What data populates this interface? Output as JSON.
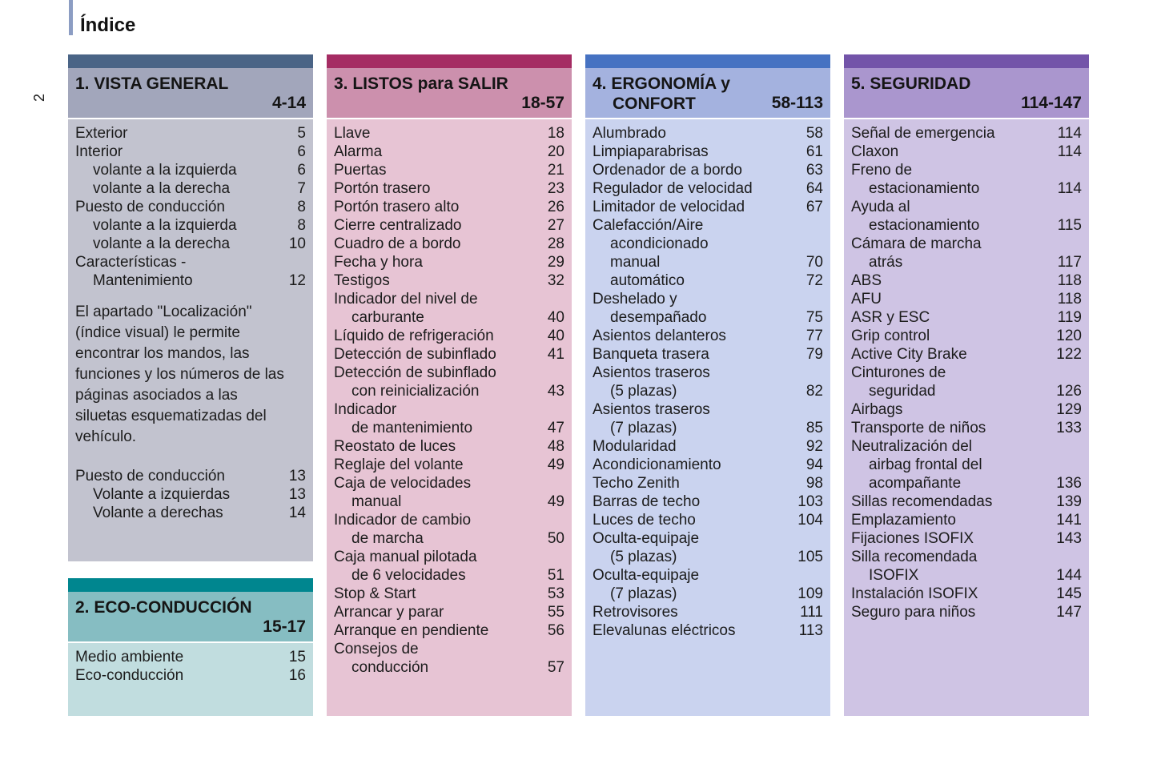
{
  "page": {
    "title": "Índice",
    "number": "2"
  },
  "sections": [
    {
      "name": "vista-general",
      "title_lines": [
        "1. VISTA GENERAL"
      ],
      "pages": "4-14",
      "colors": {
        "strip": "#4a6486",
        "header": "#a2a6bb",
        "body": "#c2c3cf"
      },
      "blocks": [
        {
          "type": "rows",
          "rows": [
            [
              "Exterior",
              0,
              "5"
            ],
            [
              "Interior",
              0,
              "6"
            ],
            [
              "volante a la izquierda",
              1,
              "6"
            ],
            [
              "volante a la derecha",
              1,
              "7"
            ],
            [
              "Puesto de conducción",
              0,
              "8"
            ],
            [
              "volante a la izquierda",
              1,
              "8"
            ],
            [
              "volante a la derecha",
              1,
              "10"
            ],
            [
              "Características -",
              0,
              ""
            ],
            [
              "Mantenimiento",
              1,
              "12"
            ]
          ]
        },
        {
          "type": "paragraph",
          "text": "El apartado \"Localización\" (índice visual) le permite encontrar los mandos, las funciones y los números de las páginas asociados a las siluetas esquematizadas del vehículo."
        },
        {
          "type": "rows",
          "rows": [
            [
              "Puesto de conducción",
              0,
              "13"
            ],
            [
              "Volante a izquierdas",
              1,
              "13"
            ],
            [
              "Volante a derechas",
              1,
              "14"
            ]
          ]
        }
      ]
    },
    {
      "name": "eco-conduccion",
      "title_lines": [
        "2. ECO-CONDUCCIÓN"
      ],
      "pages": "15-17",
      "colors": {
        "strip": "#00868f",
        "header": "#86bdc2",
        "body": "#c1dddf"
      },
      "blocks": [
        {
          "type": "rows",
          "rows": [
            [
              "Medio ambiente",
              0,
              "15"
            ],
            [
              "Eco-conducción",
              0,
              "16"
            ]
          ]
        }
      ]
    },
    {
      "name": "listos-para-salir",
      "title_lines": [
        "3. LISTOS para SALIR"
      ],
      "pages": "18-57",
      "colors": {
        "strip": "#a52c63",
        "header": "#cc90ad",
        "body": "#e7c4d4"
      },
      "blocks": [
        {
          "type": "rows",
          "rows": [
            [
              "Llave",
              0,
              "18"
            ],
            [
              "Alarma",
              0,
              "20"
            ],
            [
              "Puertas",
              0,
              "21"
            ],
            [
              "Portón trasero",
              0,
              "23"
            ],
            [
              "Portón trasero alto",
              0,
              "26"
            ],
            [
              "Cierre centralizado",
              0,
              "27"
            ],
            [
              "Cuadro de a bordo",
              0,
              "28"
            ],
            [
              "Fecha y hora",
              0,
              "29"
            ],
            [
              "Testigos",
              0,
              "32"
            ],
            [
              "Indicador del nivel de",
              0,
              ""
            ],
            [
              "carburante",
              1,
              "40"
            ],
            [
              "Líquido de refrigeración",
              0,
              "40"
            ],
            [
              "Detección de subinflado",
              0,
              "41"
            ],
            [
              "Detección de subinflado",
              0,
              ""
            ],
            [
              "con reinicialización",
              1,
              "43"
            ],
            [
              "Indicador",
              0,
              ""
            ],
            [
              "de mantenimiento",
              1,
              "47"
            ],
            [
              "Reostato de luces",
              0,
              "48"
            ],
            [
              "Reglaje del volante",
              0,
              "49"
            ],
            [
              "Caja de velocidades",
              0,
              ""
            ],
            [
              "manual",
              1,
              "49"
            ],
            [
              "Indicador de cambio",
              0,
              ""
            ],
            [
              "de marcha",
              1,
              "50"
            ],
            [
              "Caja manual pilotada",
              0,
              ""
            ],
            [
              "de 6 velocidades",
              1,
              "51"
            ],
            [
              "Stop & Start",
              0,
              "53"
            ],
            [
              "Arrancar y parar",
              0,
              "55"
            ],
            [
              "Arranque en pendiente",
              0,
              "56"
            ],
            [
              "Consejos de",
              0,
              ""
            ],
            [
              "conducción",
              1,
              "57"
            ]
          ]
        }
      ]
    },
    {
      "name": "ergonomia-confort",
      "title_lines": [
        "4. ERGONOMÍA y",
        "CONFORT"
      ],
      "pages": "58-113",
      "colors": {
        "strip": "#4672c2",
        "header": "#a4b2df",
        "body": "#cad3ef"
      },
      "blocks": [
        {
          "type": "rows",
          "rows": [
            [
              "Alumbrado",
              0,
              "58"
            ],
            [
              "Limpiaparabrisas",
              0,
              "61"
            ],
            [
              "Ordenador de a bordo",
              0,
              "63"
            ],
            [
              "Regulador de velocidad",
              0,
              "64"
            ],
            [
              "Limitador de velocidad",
              0,
              "67"
            ],
            [
              "Calefacción/Aire",
              0,
              ""
            ],
            [
              "acondicionado",
              1,
              ""
            ],
            [
              "manual",
              1,
              "70"
            ],
            [
              "automático",
              1,
              "72"
            ],
            [
              "Deshelado y",
              0,
              ""
            ],
            [
              "desempañado",
              1,
              "75"
            ],
            [
              "Asientos delanteros",
              0,
              "77"
            ],
            [
              "Banqueta trasera",
              0,
              "79"
            ],
            [
              "Asientos traseros",
              0,
              ""
            ],
            [
              "(5 plazas)",
              1,
              "82"
            ],
            [
              "Asientos traseros",
              0,
              ""
            ],
            [
              "(7 plazas)",
              1,
              "85"
            ],
            [
              "Modularidad",
              0,
              "92"
            ],
            [
              "Acondicionamiento",
              0,
              "94"
            ],
            [
              "Techo Zenith",
              0,
              "98"
            ],
            [
              "Barras de techo",
              0,
              "103"
            ],
            [
              "Luces de techo",
              0,
              "104"
            ],
            [
              "Oculta-equipaje",
              0,
              ""
            ],
            [
              "(5 plazas)",
              1,
              "105"
            ],
            [
              "Oculta-equipaje",
              0,
              ""
            ],
            [
              "(7 plazas)",
              1,
              "109"
            ],
            [
              "Retrovisores",
              0,
              "111"
            ],
            [
              "Elevalunas eléctricos",
              0,
              "113"
            ]
          ]
        }
      ]
    },
    {
      "name": "seguridad",
      "title_lines": [
        "5. SEGURIDAD"
      ],
      "pages": "114-147",
      "colors": {
        "strip": "#7354a9",
        "header": "#aa96ce",
        "body": "#cfc4e4"
      },
      "blocks": [
        {
          "type": "rows",
          "rows": [
            [
              "Señal de emergencia",
              0,
              "114"
            ],
            [
              "Claxon",
              0,
              "114"
            ],
            [
              "Freno de",
              0,
              ""
            ],
            [
              "estacionamiento",
              1,
              "114"
            ],
            [
              "Ayuda al",
              0,
              ""
            ],
            [
              "estacionamiento",
              1,
              "115"
            ],
            [
              "Cámara de marcha",
              0,
              ""
            ],
            [
              "atrás",
              1,
              "117"
            ],
            [
              "ABS",
              0,
              "118"
            ],
            [
              "AFU",
              0,
              "118"
            ],
            [
              "ASR y ESC",
              0,
              "119"
            ],
            [
              "Grip control",
              0,
              "120"
            ],
            [
              "Active City Brake",
              0,
              "122"
            ],
            [
              "Cinturones de",
              0,
              ""
            ],
            [
              "seguridad",
              1,
              "126"
            ],
            [
              "Airbags",
              0,
              "129"
            ],
            [
              "Transporte de niños",
              0,
              "133"
            ],
            [
              "Neutralización del",
              0,
              ""
            ],
            [
              "airbag frontal del",
              1,
              ""
            ],
            [
              "acompañante",
              1,
              "136"
            ],
            [
              "Sillas recomendadas",
              0,
              "139"
            ],
            [
              "Emplazamiento",
              0,
              "141"
            ],
            [
              "Fijaciones ISOFIX",
              0,
              "143"
            ],
            [
              "Silla recomendada",
              0,
              ""
            ],
            [
              "ISOFIX",
              1,
              "144"
            ],
            [
              "Instalación ISOFIX",
              0,
              "145"
            ],
            [
              "Seguro para niños",
              0,
              "147"
            ]
          ]
        }
      ]
    }
  ]
}
